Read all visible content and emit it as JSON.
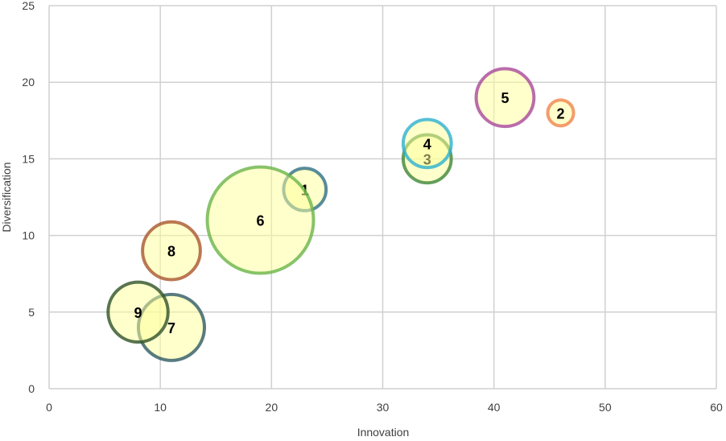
{
  "chart_data": {
    "type": "bubble",
    "title": "",
    "xlabel": "Innovation",
    "ylabel": "Diversification",
    "xlim": [
      0,
      60
    ],
    "ylim": [
      0,
      25
    ],
    "xticks": [
      0,
      10,
      20,
      30,
      40,
      50,
      60
    ],
    "yticks": [
      0,
      5,
      10,
      15,
      20,
      25
    ],
    "grid": true,
    "fill_color": "#ffff99",
    "points": [
      {
        "label": "1",
        "x": 23,
        "y": 13,
        "size": 7,
        "color": "#2f6f86"
      },
      {
        "label": "2",
        "x": 46,
        "y": 18,
        "size": 2.6,
        "color": "#f0844c"
      },
      {
        "label": "3",
        "x": 34,
        "y": 15,
        "size": 9,
        "color": "#3f8637"
      },
      {
        "label": "4",
        "x": 34,
        "y": 16,
        "size": 9,
        "color": "#2bb0d0"
      },
      {
        "label": "5",
        "x": 41,
        "y": 19,
        "size": 13,
        "color": "#a8489a"
      },
      {
        "label": "6",
        "x": 19,
        "y": 11,
        "size": 44,
        "color": "#6ab448"
      },
      {
        "label": "7",
        "x": 11,
        "y": 4,
        "size": 17,
        "color": "#2f5a64"
      },
      {
        "label": "8",
        "x": 11,
        "y": 9,
        "size": 13,
        "color": "#a9562c"
      },
      {
        "label": "9",
        "x": 8,
        "y": 5,
        "size": 14,
        "color": "#2f5228"
      }
    ]
  }
}
